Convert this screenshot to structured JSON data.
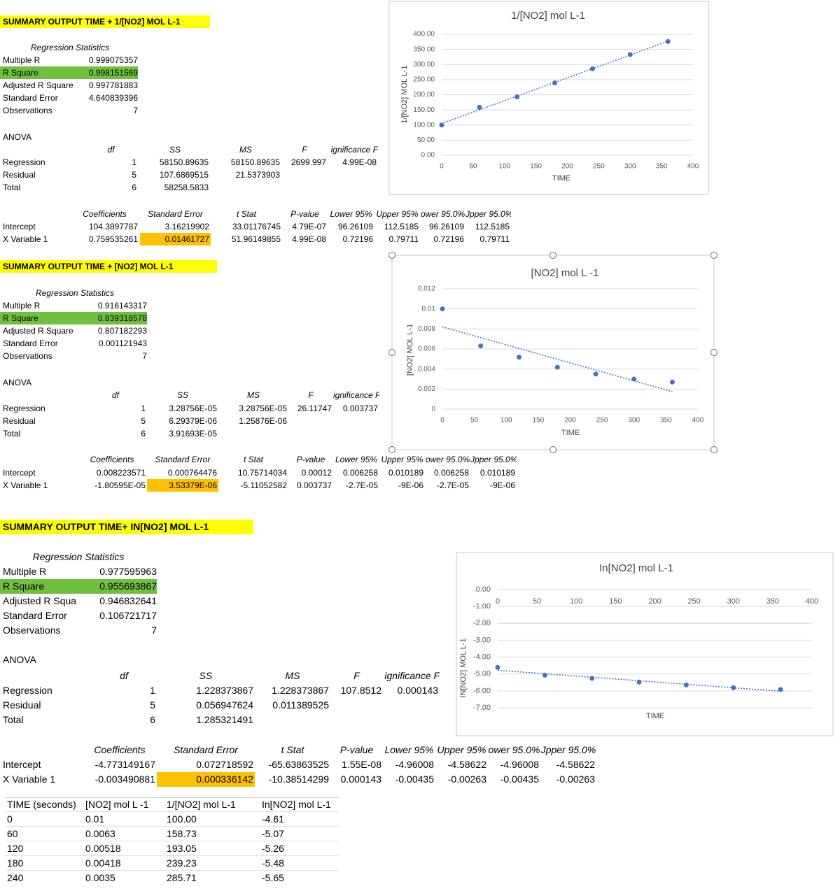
{
  "sections": [
    {
      "title": "SUMMARY OUTPUT TIME + 1/[NO2] MOL L-1",
      "regression_statistics": {
        "heading": "Regression Statistics",
        "rows": [
          [
            "Multiple R",
            "0.999075357"
          ],
          [
            "R Square",
            "0.998151569"
          ],
          [
            "Adjusted R Square",
            "0.997781883"
          ],
          [
            "Standard Error",
            "4.640839396"
          ],
          [
            "Observations",
            "7"
          ]
        ]
      },
      "anova": {
        "heading": "ANOVA",
        "header": [
          "df",
          "SS",
          "MS",
          "F",
          "ignificance F"
        ],
        "rows": [
          [
            "Regression",
            "1",
            "58150.89635",
            "58150.89635",
            "2699.997",
            "4.99E-08"
          ],
          [
            "Residual",
            "5",
            "107.6869515",
            "21.5373903"
          ],
          [
            "Total",
            "6",
            "58258.5833"
          ]
        ]
      },
      "coefficients": {
        "header": [
          "Coefficients",
          "Standard Error",
          "t Stat",
          "P-value",
          "Lower 95%",
          "Upper 95%",
          "ower 95.0%",
          "Jpper 95.0%"
        ],
        "rows": [
          [
            "Intercept",
            "104.3897787",
            "3.16219902",
            "33.01176745",
            "4.79E-07",
            "96.26109",
            "112.5185",
            "96.26109",
            "112.5185"
          ],
          [
            "X Variable 1",
            "0.759535261",
            "0.01461727",
            "51.96149855",
            "4.99E-08",
            "0.72196",
            "0.79711",
            "0.72196",
            "0.79711"
          ]
        ]
      }
    },
    {
      "title": "SUMMARY OUTPUT TIME + [NO2] MOL L-1",
      "regression_statistics": {
        "heading": "Regression Statistics",
        "rows": [
          [
            "Multiple R",
            "0.916143317"
          ],
          [
            "R Square",
            "0.839318578"
          ],
          [
            "Adjusted R Square",
            "0.807182293"
          ],
          [
            "Standard Error",
            "0.001121943"
          ],
          [
            "Observations",
            "7"
          ]
        ]
      },
      "anova": {
        "heading": "ANOVA",
        "header": [
          "df",
          "SS",
          "MS",
          "F",
          "ignificance F"
        ],
        "rows": [
          [
            "Regression",
            "1",
            "3.28756E-05",
            "3.28756E-05",
            "26.11747",
            "0.003737"
          ],
          [
            "Residual",
            "5",
            "6.29379E-06",
            "1.25876E-06"
          ],
          [
            "Total",
            "6",
            "3.91693E-05"
          ]
        ]
      },
      "coefficients": {
        "header": [
          "Coefficients",
          "Standard Error",
          "t Stat",
          "P-value",
          "Lower 95%",
          "Upper 95%",
          "ower 95.0%",
          "Jpper 95.0%"
        ],
        "rows": [
          [
            "Intercept",
            "0.008223571",
            "0.000764476",
            "10.75714034",
            "0.00012",
            "0.006258",
            "0.010189",
            "0.006258",
            "0.010189"
          ],
          [
            "X Variable 1",
            "-1.80595E-05",
            "3.53379E-06",
            "-5.11052582",
            "0.003737",
            "-2.7E-05",
            "-9E-06",
            "-2.7E-05",
            "-9E-06"
          ]
        ]
      }
    },
    {
      "title": "SUMMARY OUTPUT TIME+ IN[NO2] MOL L-1",
      "regression_statistics": {
        "heading": "Regression Statistics",
        "rows": [
          [
            "Multiple R",
            "0.977595963"
          ],
          [
            "R Square",
            "0.955693867"
          ],
          [
            "Adjusted R Squa",
            "0.946832641"
          ],
          [
            "Standard Error",
            "0.106721717"
          ],
          [
            "Observations",
            "7"
          ]
        ]
      },
      "anova": {
        "heading": "ANOVA",
        "header": [
          "df",
          "SS",
          "MS",
          "F",
          "ignificance F"
        ],
        "rows": [
          [
            "Regression",
            "1",
            "1.228373867",
            "1.228373867",
            "107.8512",
            "0.000143"
          ],
          [
            "Residual",
            "5",
            "0.056947624",
            "0.011389525"
          ],
          [
            "Total",
            "6",
            "1.285321491"
          ]
        ]
      },
      "coefficients": {
        "header": [
          "Coefficients",
          "Standard Error",
          "t Stat",
          "P-value",
          "Lower 95%",
          "Upper 95%",
          "ower 95.0%",
          "Jpper 95.0%"
        ],
        "rows": [
          [
            "Intercept",
            "-4.773149167",
            "0.072718592",
            "-65.63863525",
            "1.55E-08",
            "-4.96008",
            "-4.58622",
            "-4.96008",
            "-4.58622"
          ],
          [
            "X Variable 1",
            "-0.003490881",
            "0.000336142",
            "-10.38514299",
            "0.000143",
            "-0.00435",
            "-0.00263",
            "-0.00435",
            "-0.00263"
          ]
        ]
      }
    }
  ],
  "data_table": {
    "header": [
      "TIME (seconds)",
      "[NO2] mol L -1",
      "1/[NO2] mol L-1",
      "In[NO2] mol L-1"
    ],
    "rows": [
      [
        "0",
        "0.01",
        "100.00",
        "-4.61"
      ],
      [
        "60",
        "0.0063",
        "158.73",
        "-5.07"
      ],
      [
        "120",
        "0.00518",
        "193.05",
        "-5.26"
      ],
      [
        "180",
        "0.00418",
        "239.23",
        "-5.48"
      ],
      [
        "240",
        "0.0035",
        "285.71",
        "-5.65"
      ]
    ]
  },
  "chart_data": [
    {
      "type": "scatter",
      "title": "1/[NO2] mol L-1",
      "x_label": "TIME",
      "y_label": "1/[NO2] MOL L-1",
      "x": [
        0,
        60,
        120,
        180,
        240,
        300,
        360
      ],
      "values": [
        100,
        158.73,
        193.05,
        239.23,
        285.71,
        333,
        376
      ],
      "color": "#4472c4",
      "trendline": "linear",
      "grid": true,
      "xlim": [
        0,
        400
      ],
      "xticks": [
        0,
        50,
        100,
        150,
        200,
        250,
        300,
        350,
        400
      ],
      "ylim": [
        0,
        400
      ],
      "yticks": [
        {
          "value": 0,
          "label": "0.00"
        },
        {
          "value": 50,
          "label": "50.00"
        },
        {
          "value": 100,
          "label": "100.00"
        },
        {
          "value": 150,
          "label": "150.00"
        },
        {
          "value": 200,
          "label": "200.00"
        },
        {
          "value": 250,
          "label": "250.00"
        },
        {
          "value": 300,
          "label": "300.00"
        },
        {
          "value": 350,
          "label": "350.00"
        },
        {
          "value": 400,
          "label": "400.00"
        }
      ]
    },
    {
      "type": "scatter",
      "title": "[NO2] mol L -1",
      "x_label": "TIME",
      "y_label": "[NO2] MOL L-1",
      "x": [
        0,
        60,
        120,
        180,
        240,
        300,
        360
      ],
      "values": [
        0.01,
        0.0063,
        0.00518,
        0.00418,
        0.0035,
        0.003,
        0.0027
      ],
      "color": "#4472c4",
      "trendline": "linear",
      "grid": true,
      "xlim": [
        0,
        400
      ],
      "xticks": [
        0,
        50,
        100,
        150,
        200,
        250,
        300,
        350,
        400
      ],
      "ylim": [
        0,
        0.012
      ],
      "yticks": [
        0,
        0.002,
        0.004,
        0.006,
        0.008,
        0.01,
        0.012
      ]
    },
    {
      "type": "scatter",
      "title": "In[NO2] mol L-1",
      "x_label": "TIME",
      "y_label": "IN[NO2] MOL L-1",
      "x": [
        0,
        60,
        120,
        180,
        240,
        300,
        360
      ],
      "values": [
        -4.61,
        -5.07,
        -5.26,
        -5.48,
        -5.65,
        -5.81,
        -5.92
      ],
      "color": "#4472c4",
      "trendline": "linear",
      "grid": true,
      "xlim": [
        0,
        400
      ],
      "xticks": [
        0,
        50,
        100,
        150,
        200,
        250,
        300,
        350,
        400
      ],
      "ylim": [
        -7,
        0
      ],
      "yticks": [
        {
          "value": 0,
          "label": "0.00"
        },
        {
          "value": -1,
          "label": "-1.00"
        },
        {
          "value": -2,
          "label": "-2.00"
        },
        {
          "value": -3,
          "label": "-3.00"
        },
        {
          "value": -4,
          "label": "-4.00"
        },
        {
          "value": -5,
          "label": "-5.00"
        },
        {
          "value": -6,
          "label": "-6.00"
        },
        {
          "value": -7,
          "label": "-7.00"
        }
      ]
    }
  ]
}
